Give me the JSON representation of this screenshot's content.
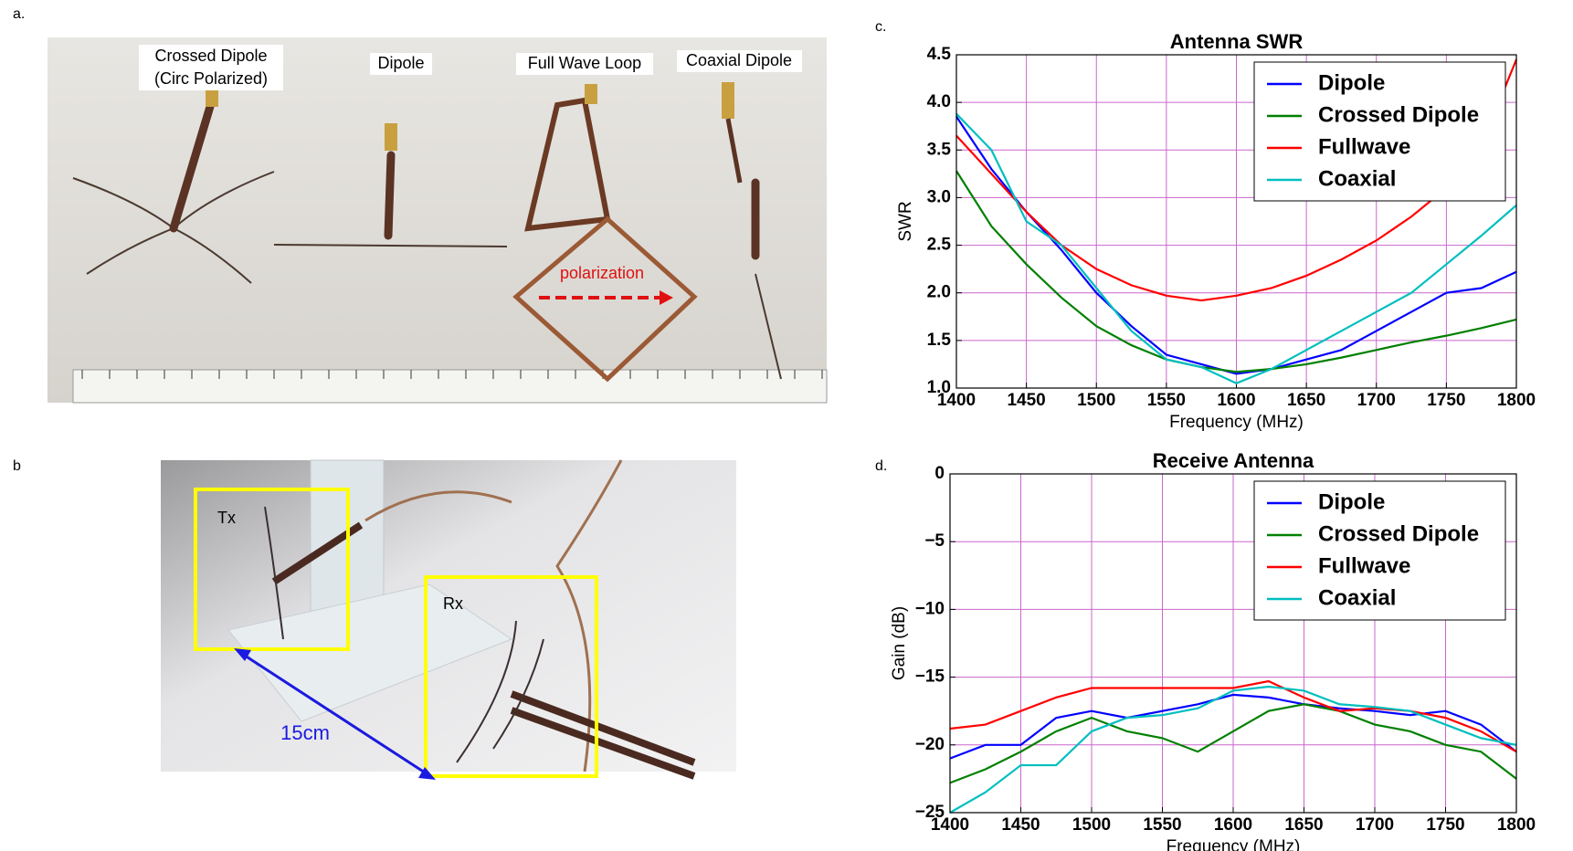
{
  "panels": {
    "a": "a.",
    "b": "b",
    "c": "c.",
    "d": "d."
  },
  "photo_a": {
    "labels": [
      [
        "Crossed Dipole",
        "(Circ Polarized)"
      ],
      [
        "Dipole"
      ],
      [
        "Full Wave Loop"
      ],
      [
        "Coaxial Dipole"
      ]
    ],
    "polarization": "polarization"
  },
  "photo_b": {
    "tx": "Tx",
    "rx": "Rx",
    "distance": "15cm"
  },
  "chart_data": [
    {
      "type": "line",
      "title": "Antenna SWR",
      "x_label": "Frequency (MHz)",
      "y_label": "SWR",
      "x": [
        1400,
        1425,
        1450,
        1475,
        1500,
        1525,
        1550,
        1575,
        1600,
        1625,
        1650,
        1675,
        1700,
        1725,
        1750,
        1775,
        1800
      ],
      "series": [
        {
          "name": "Dipole",
          "color": "#0000ff",
          "values": [
            3.85,
            3.3,
            2.85,
            2.45,
            2.0,
            1.65,
            1.35,
            1.25,
            1.15,
            1.2,
            1.3,
            1.4,
            1.6,
            1.8,
            2.0,
            2.05,
            2.22
          ]
        },
        {
          "name": "Crossed Dipole",
          "color": "#008000",
          "values": [
            3.28,
            2.7,
            2.3,
            1.95,
            1.65,
            1.45,
            1.3,
            1.22,
            1.17,
            1.2,
            1.25,
            1.32,
            1.4,
            1.48,
            1.55,
            1.63,
            1.72
          ]
        },
        {
          "name": "Fullwave",
          "color": "#ff0000",
          "values": [
            3.65,
            3.25,
            2.85,
            2.5,
            2.25,
            2.08,
            1.97,
            1.92,
            1.97,
            2.05,
            2.18,
            2.35,
            2.55,
            2.8,
            3.1,
            3.55,
            4.45
          ]
        },
        {
          "name": "Coaxial",
          "color": "#00bfbf",
          "values": [
            3.88,
            3.5,
            2.75,
            2.5,
            2.05,
            1.6,
            1.3,
            1.22,
            1.05,
            1.2,
            1.4,
            1.6,
            1.8,
            2.0,
            2.3,
            2.6,
            2.92
          ]
        }
      ],
      "xlim": [
        1400,
        1800
      ],
      "xticks": [
        1400,
        1450,
        1500,
        1550,
        1600,
        1650,
        1700,
        1750,
        1800
      ],
      "ylim": [
        1.0,
        4.5
      ],
      "yticks": [
        {
          "value": 1.0,
          "label": "1.0"
        },
        {
          "value": 1.5,
          "label": "1.5"
        },
        {
          "value": 2.0,
          "label": "2.0"
        },
        {
          "value": 2.5,
          "label": "2.5"
        },
        {
          "value": 3.0,
          "label": "3.0"
        },
        {
          "value": 3.5,
          "label": "3.5"
        },
        {
          "value": 4.0,
          "label": "4.0"
        },
        {
          "value": 4.5,
          "label": "4.5"
        }
      ],
      "grid": true,
      "grid_color": "#cc66cc",
      "legend": "upper-right"
    },
    {
      "type": "line",
      "title": "Receive Antenna",
      "x_label": "Frequency (MHz)",
      "y_label": "Gain (dB)",
      "x": [
        1400,
        1425,
        1450,
        1475,
        1500,
        1525,
        1550,
        1575,
        1600,
        1625,
        1650,
        1675,
        1700,
        1725,
        1750,
        1775,
        1800
      ],
      "series": [
        {
          "name": "Dipole",
          "color": "#0000ff",
          "values": [
            -21,
            -20,
            -20,
            -18,
            -17.5,
            -18,
            -17.5,
            -17,
            -16.3,
            -16.5,
            -17,
            -17.3,
            -17.5,
            -17.8,
            -17.5,
            -18.5,
            -20.5
          ]
        },
        {
          "name": "Crossed Dipole",
          "color": "#008000",
          "values": [
            -22.8,
            -21.8,
            -20.5,
            -19,
            -18,
            -19,
            -19.5,
            -20.5,
            -19,
            -17.5,
            -17,
            -17.5,
            -18.5,
            -19,
            -20,
            -20.5,
            -22.5
          ]
        },
        {
          "name": "Fullwave",
          "color": "#ff0000",
          "values": [
            -18.8,
            -18.5,
            -17.5,
            -16.5,
            -15.8,
            -15.8,
            -15.8,
            -15.8,
            -15.8,
            -15.3,
            -16.5,
            -17.5,
            -17.3,
            -17.5,
            -18,
            -19,
            -20.5
          ]
        },
        {
          "name": "Coaxial",
          "color": "#00bfbf",
          "values": [
            -25,
            -23.5,
            -21.5,
            -21.5,
            -19,
            -18,
            -17.8,
            -17.3,
            -16,
            -15.7,
            -16,
            -17,
            -17.2,
            -17.5,
            -18.5,
            -19.5,
            -20
          ]
        }
      ],
      "xlim": [
        1400,
        1800
      ],
      "xticks": [
        1400,
        1450,
        1500,
        1550,
        1600,
        1650,
        1700,
        1750,
        1800
      ],
      "ylim": [
        -25,
        0
      ],
      "yticks": [
        {
          "value": -25,
          "label": "−25"
        },
        {
          "value": -20,
          "label": "−20"
        },
        {
          "value": -15,
          "label": "−15"
        },
        {
          "value": -10,
          "label": "−10"
        },
        {
          "value": -5,
          "label": "−5"
        },
        0
      ],
      "grid": true,
      "grid_color": "#cc66cc",
      "legend": "upper-right"
    }
  ]
}
